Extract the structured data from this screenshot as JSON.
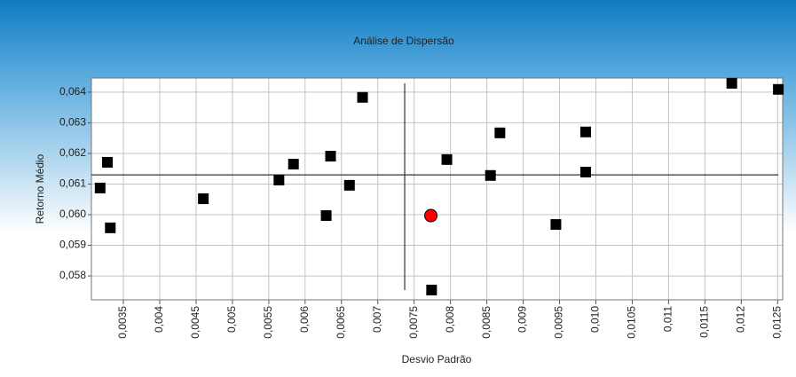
{
  "chart_data": {
    "type": "scatter",
    "title": "Análise de Dispersão",
    "x_label": "Desvio Padrão",
    "y_label": "Retorno Médio",
    "xlim": [
      0.00306,
      0.01257
    ],
    "ylim": [
      0.05722,
      0.06446
    ],
    "xticks": [
      {
        "value": 0.0035,
        "label": "0,0035"
      },
      {
        "value": 0.004,
        "label": "0,004"
      },
      {
        "value": 0.0045,
        "label": "0,0045"
      },
      {
        "value": 0.005,
        "label": "0,005"
      },
      {
        "value": 0.0055,
        "label": "0,0055"
      },
      {
        "value": 0.006,
        "label": "0,006"
      },
      {
        "value": 0.0065,
        "label": "0,0065"
      },
      {
        "value": 0.007,
        "label": "0,007"
      },
      {
        "value": 0.0075,
        "label": "0,0075"
      },
      {
        "value": 0.008,
        "label": "0,008"
      },
      {
        "value": 0.0085,
        "label": "0,0085"
      },
      {
        "value": 0.009,
        "label": "0,009"
      },
      {
        "value": 0.0095,
        "label": "0,0095"
      },
      {
        "value": 0.01,
        "label": "0,010"
      },
      {
        "value": 0.0105,
        "label": "0,0105"
      },
      {
        "value": 0.011,
        "label": "0,011"
      },
      {
        "value": 0.0115,
        "label": "0,0115"
      },
      {
        "value": 0.012,
        "label": "0,012"
      },
      {
        "value": 0.0125,
        "label": "0,0125"
      }
    ],
    "yticks": [
      {
        "value": 0.058,
        "label": "0,058"
      },
      {
        "value": 0.059,
        "label": "0,059"
      },
      {
        "value": 0.06,
        "label": "0,060"
      },
      {
        "value": 0.061,
        "label": "0,061"
      },
      {
        "value": 0.062,
        "label": "0,062"
      },
      {
        "value": 0.063,
        "label": "0,063"
      },
      {
        "value": 0.064,
        "label": "0,064"
      }
    ],
    "grid": true,
    "reference_lines": {
      "x": 0.00737,
      "y": 0.0613
    },
    "series": [
      {
        "color": "#000000",
        "marker": "square",
        "x": [
          0.00318,
          0.00328,
          0.00332,
          0.0046,
          0.00564,
          0.00584,
          0.00629,
          0.00635,
          0.00661,
          0.00679,
          0.00774,
          0.00795,
          0.00855,
          0.00868,
          0.00945,
          0.00986,
          0.00986,
          0.01187,
          0.01251
        ],
        "values": [
          0.06087,
          0.06171,
          0.05957,
          0.06052,
          0.06113,
          0.06165,
          0.05997,
          0.06191,
          0.06096,
          0.06383,
          0.05754,
          0.0618,
          0.06128,
          0.06267,
          0.05968,
          0.0627,
          0.06139,
          0.06429,
          0.06409
        ]
      },
      {
        "color": "#ff0000",
        "marker": "circle",
        "x": [
          0.00773
        ],
        "values": [
          0.05997
        ]
      }
    ]
  }
}
